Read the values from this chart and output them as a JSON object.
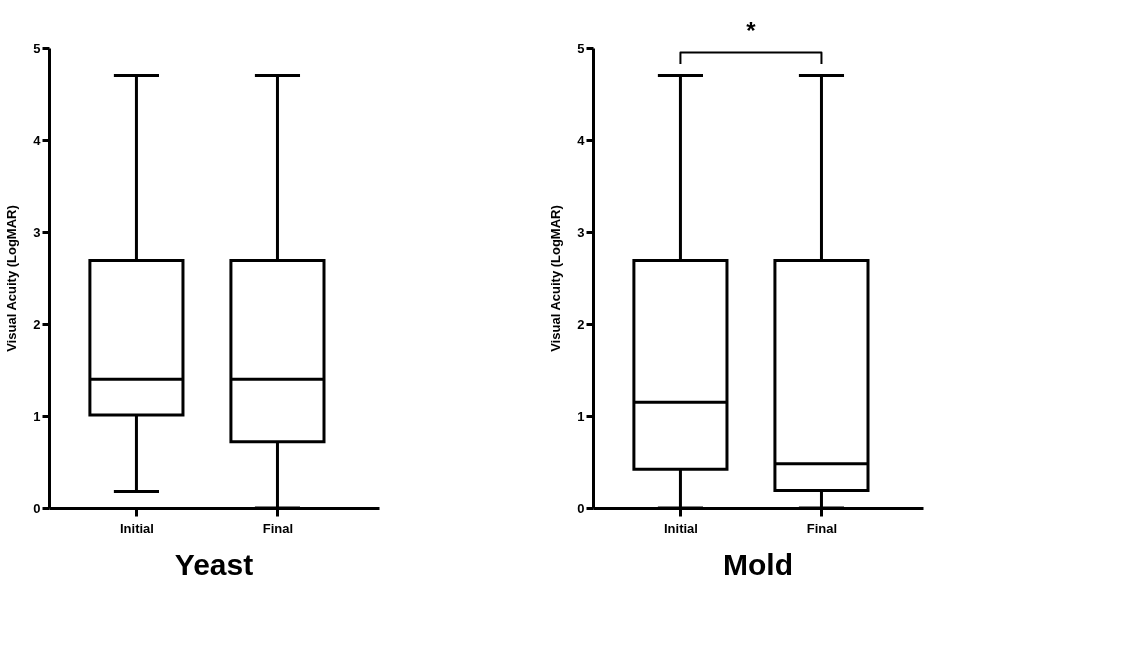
{
  "chart_data": [
    {
      "type": "box",
      "title": "Yeast",
      "ylabel": "Visual Acuity (LogMAR)",
      "categories": [
        "Initial",
        "Final"
      ],
      "boxes": [
        {
          "low": 0.18,
          "q1": 1.01,
          "median": 1.4,
          "q3": 2.69,
          "high": 4.7
        },
        {
          "low": 0,
          "q1": 0.72,
          "median": 1.4,
          "q3": 2.69,
          "high": 4.7
        }
      ],
      "ylim": [
        0,
        5
      ],
      "yticks": [
        0,
        1,
        2,
        3,
        4,
        5
      ]
    },
    {
      "type": "box",
      "title": "Mold",
      "ylabel": "Visual Acuity (LogMAR)",
      "categories": [
        "Initial",
        "Final"
      ],
      "boxes": [
        {
          "low": 0,
          "q1": 0.42,
          "median": 1.15,
          "q3": 2.69,
          "high": 4.7
        },
        {
          "low": 0,
          "q1": 0.19,
          "median": 0.48,
          "q3": 2.69,
          "high": 4.7
        }
      ],
      "ylim": [
        0,
        5
      ],
      "yticks": [
        0,
        1,
        2,
        3,
        4,
        5
      ],
      "annotations": [
        "*"
      ]
    }
  ]
}
